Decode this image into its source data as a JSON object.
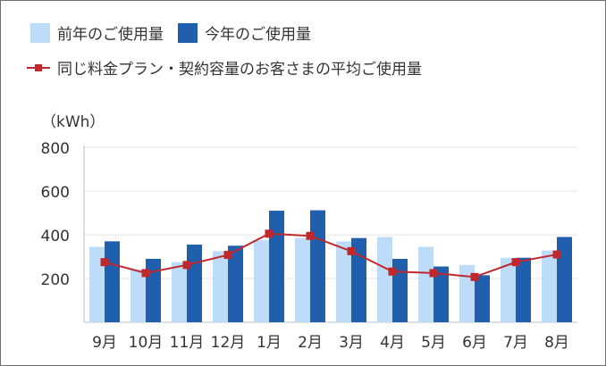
{
  "chart_data": {
    "type": "bar",
    "unit": "（kWh）",
    "categories": [
      "9月",
      "10月",
      "11月",
      "12月",
      "1月",
      "2月",
      "3月",
      "4月",
      "5月",
      "6月",
      "7月",
      "8月"
    ],
    "series": [
      {
        "name": "前年のご使用量",
        "kind": "bar",
        "color": "#bcdcf7",
        "values": [
          345,
          240,
          275,
          325,
          375,
          385,
          370,
          390,
          345,
          262,
          295,
          328
        ]
      },
      {
        "name": "今年のご使用量",
        "kind": "bar",
        "color": "#1f5fad",
        "values": [
          370,
          290,
          355,
          350,
          510,
          512,
          385,
          290,
          255,
          215,
          295,
          390
        ]
      },
      {
        "name": "同じ料金プラン・契約容量のお客さまの平均ご使用量",
        "kind": "line",
        "color": "#c0282d",
        "values": [
          275,
          225,
          262,
          308,
          405,
          395,
          325,
          232,
          225,
          207,
          275,
          310
        ]
      }
    ],
    "yticks": [
      200,
      400,
      600,
      800
    ],
    "ylim": [
      0,
      800
    ],
    "grid": true,
    "legend": "top"
  }
}
